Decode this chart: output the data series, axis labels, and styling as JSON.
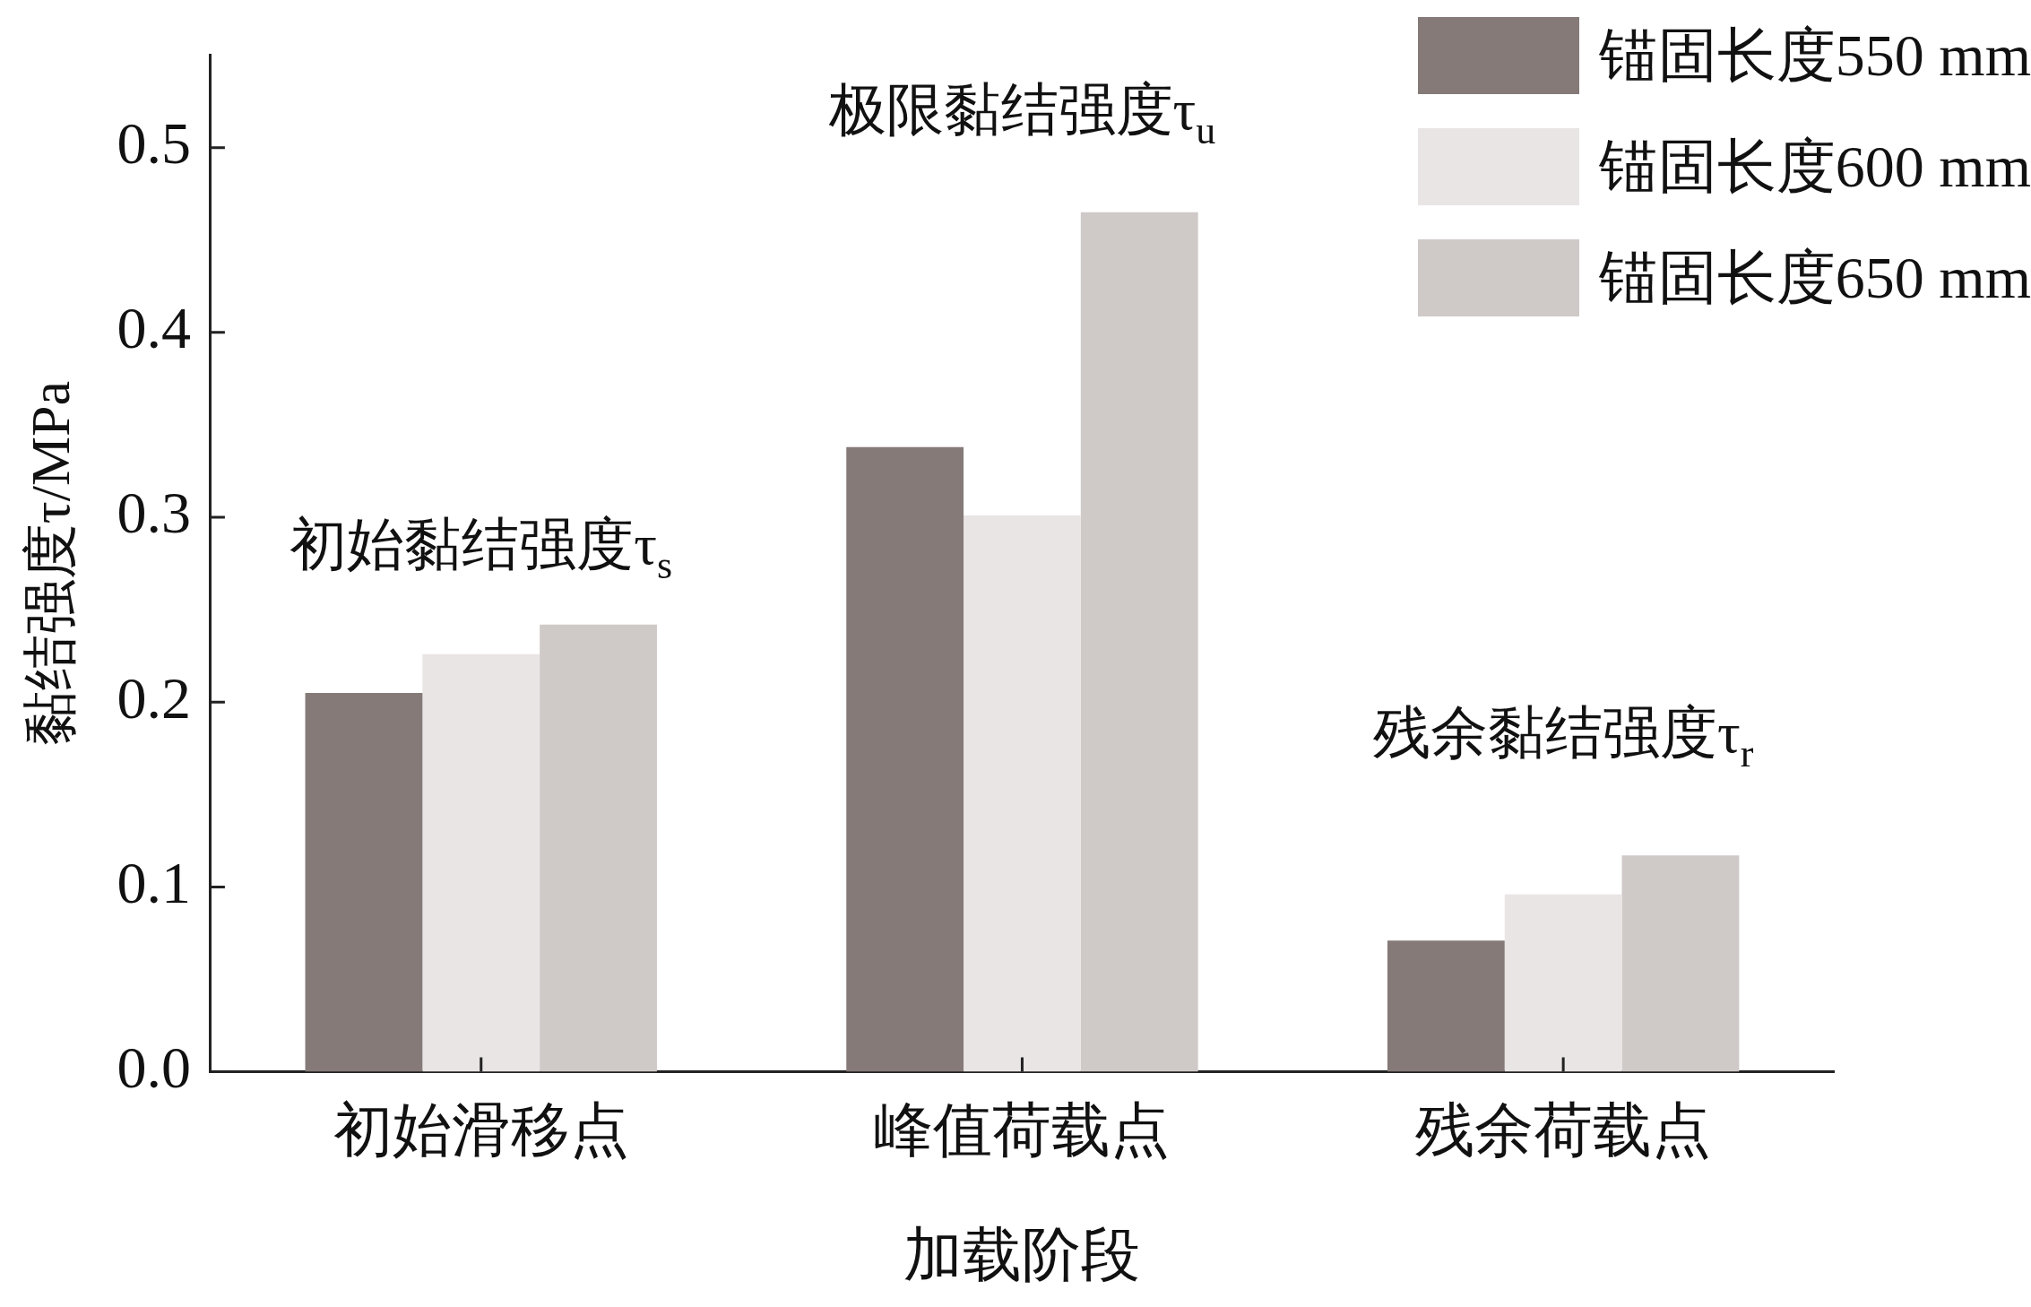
{
  "chart_data": {
    "type": "bar",
    "xlabel": "加载阶段",
    "ylabel": "黏结强度τ/MPa",
    "categories": [
      "初始滑移点",
      "峰值荷载点",
      "残余荷载点"
    ],
    "series": [
      {
        "name": "锚固长度550 mm",
        "color": "#857a78",
        "values": [
          0.205,
          0.338,
          0.071
        ]
      },
      {
        "name": "锚固长度600 mm",
        "color": "#e9e5e4",
        "values": [
          0.226,
          0.301,
          0.096
        ]
      },
      {
        "name": "锚固长度650 mm",
        "color": "#cfc9c8",
        "values": [
          0.242,
          0.465,
          0.117
        ]
      }
    ],
    "ylim": [
      0,
      0.55
    ],
    "yticks": [
      {
        "value": 0,
        "label": "0.0"
      },
      0.1,
      0.2,
      0.3,
      0.4,
      0.5
    ],
    "annotations": [
      "初始黏结强度τ$_{s}$",
      "极限黏结强度τ$_{u}$",
      "残余黏结强度τ$_{r}$"
    ],
    "grid": false,
    "legend": "top right"
  }
}
